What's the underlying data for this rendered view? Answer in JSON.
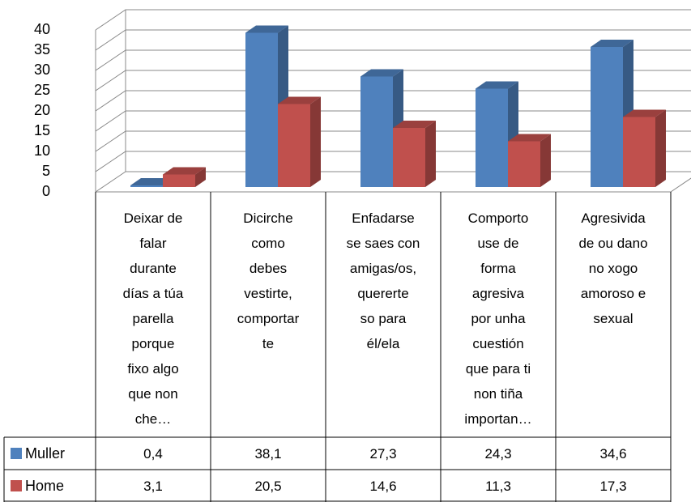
{
  "chart_data": {
    "type": "bar3d",
    "categories": [
      "Deixar de\nfalar\ndurante\ndías a túa\nparella\nporque\nfixo algo\nque non\nche…",
      "Dicirche\ncomo\ndebes\nvestirte,\ncomportar\nte",
      "Enfadarse\nse saes con\namigas/os,\nquererte\nso para\nél/ela",
      "Comporto\nuse de\nforma\nagresiva\npor unha\ncuestión\nque para ti\nnon tiña\nimportan…",
      "Agresivida\nde ou dano\nno xogo\namoroso e\nsexual"
    ],
    "series": [
      {
        "name": "Muller",
        "color": "#4f81bd",
        "values": [
          0.4,
          38.1,
          27.3,
          24.3,
          34.6
        ],
        "value_labels": [
          "0,4",
          "38,1",
          "27,3",
          "24,3",
          "34,6"
        ]
      },
      {
        "name": "Home",
        "color": "#c0504d",
        "values": [
          3.1,
          20.5,
          14.6,
          11.3,
          17.3
        ],
        "value_labels": [
          "3,1",
          "20,5",
          "14,6",
          "11,3",
          "17,3"
        ]
      }
    ],
    "ylim": [
      0,
      40
    ],
    "yticks": [
      0,
      5,
      10,
      15,
      20,
      25,
      30,
      35,
      40
    ],
    "grid": true
  }
}
